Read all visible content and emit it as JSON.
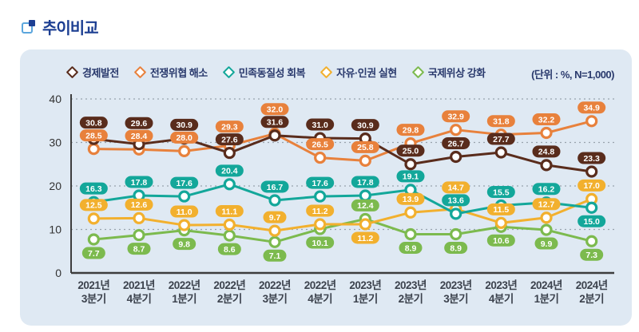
{
  "page": {
    "title": "추이비교"
  },
  "chart": {
    "unit_label": "(단위 : %, N=1,000)"
  },
  "chart_data": {
    "type": "line",
    "title": "추이비교",
    "unit": "(단위 : %, N=1,000)",
    "categories": [
      "2021년 3분기",
      "2021년 4분기",
      "2022년 1분기",
      "2022년 2분기",
      "2022년 3분기",
      "2022년 4분기",
      "2023년 1분기",
      "2023년 2분기",
      "2023년 3분기",
      "2023년 4분기",
      "2024년 1분기",
      "2024년 2분기"
    ],
    "series": [
      {
        "name": "경제발전",
        "color": "#592c1c",
        "values": [
          30.8,
          29.6,
          30.9,
          27.6,
          31.6,
          31.0,
          30.9,
          25.0,
          26.7,
          27.7,
          24.8,
          23.3
        ],
        "label_below": []
      },
      {
        "name": "전쟁위협 해소",
        "color": "#e8813c",
        "values": [
          28.5,
          28.4,
          28.0,
          29.3,
          32.0,
          26.5,
          25.8,
          29.8,
          32.9,
          31.8,
          32.2,
          34.9
        ],
        "label_below": []
      },
      {
        "name": "민족동질성 회복",
        "color": "#13a79a",
        "values": [
          16.3,
          17.8,
          17.6,
          20.4,
          16.7,
          17.6,
          17.8,
          19.1,
          13.6,
          15.5,
          16.2,
          15.0
        ],
        "label_below": [
          11
        ]
      },
      {
        "name": "자유·인권 실현",
        "color": "#f2b02e",
        "values": [
          12.5,
          12.6,
          11.0,
          11.1,
          9.7,
          11.2,
          11.2,
          13.9,
          14.7,
          11.5,
          12.7,
          17.0
        ],
        "label_below": [
          6
        ]
      },
      {
        "name": "국제위상 강화",
        "color": "#7cba4e",
        "values": [
          7.7,
          8.7,
          9.8,
          8.6,
          7.1,
          10.1,
          12.4,
          8.9,
          8.9,
          10.6,
          9.9,
          7.3
        ],
        "label_below": [
          0,
          1,
          2,
          3,
          4,
          5,
          7,
          8,
          9,
          10,
          11
        ]
      }
    ],
    "ylim": [
      0,
      40
    ],
    "yticks": [
      0,
      10,
      20,
      30,
      40
    ],
    "grid": "dotted-horizontal",
    "legend_position": "top",
    "axis_color": "#3d3d3d",
    "grid_color": "#98a3ad"
  }
}
